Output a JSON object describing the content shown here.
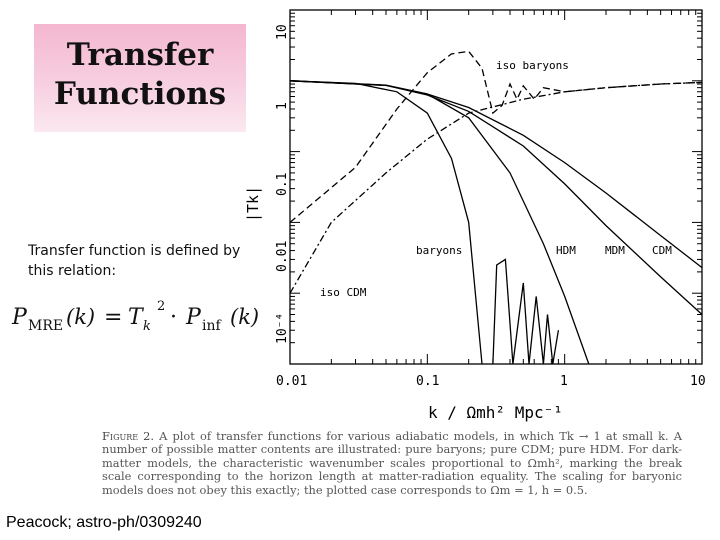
{
  "slide": {
    "title_line1": "Transfer",
    "title_line2": "Functions",
    "description": "Transfer function is defined by this relation:",
    "formula": {
      "lhs_var": "P",
      "lhs_sub": "MRE",
      "lhs_arg": "(k)",
      "equals": "=",
      "t_var": "T",
      "t_sub": "k",
      "t_sup": "2",
      "dot": "·",
      "rhs_var": "P",
      "rhs_sub": "inf",
      "rhs_arg": "(k)"
    },
    "credit": "Peacock; astro-ph/0309240"
  },
  "figure": {
    "caption_label": "Figure 2.",
    "caption_text": "A plot of transfer functions for various adiabatic models, in which Tk → 1 at small k. A number of possible matter contents are illustrated: pure baryons; pure CDM; pure HDM. For dark-matter models, the characteristic wavenumber scales proportional to Ωmh², marking the break scale corresponding to the horizon length at matter-radiation equality. The scaling for baryonic models does not obey this exactly; the plotted case corresponds to Ωm = 1, h = 0.5."
  },
  "chart_data": {
    "type": "line",
    "x_scale": "log",
    "y_scale": "log",
    "xlim": [
      0.01,
      10
    ],
    "ylim": [
      0.0001,
      10
    ],
    "xlabel": "k / Ωmh² Mpc⁻¹",
    "ylabel": "|Tk|",
    "x_ticks": [
      "0.01",
      "0.1",
      "1",
      "10"
    ],
    "y_ticks": [
      "10⁻⁴",
      "0.01",
      "0.1",
      "1",
      "10"
    ],
    "annotations": [
      "iso baryons",
      "baryons",
      "HDM",
      "MDM",
      "CDM",
      "iso CDM"
    ],
    "series": [
      {
        "style": "solid",
        "x": [
          0.01,
          0.03,
          0.06,
          0.1,
          0.15,
          0.2,
          0.25
        ],
        "y": [
          1.0,
          0.92,
          0.7,
          0.35,
          0.08,
          0.01,
          0.0001
        ]
      },
      {
        "style": "solid",
        "x": [
          0.01,
          0.05,
          0.1,
          0.2,
          0.4,
          0.7,
          1.0,
          1.5
        ],
        "y": [
          1.0,
          0.87,
          0.65,
          0.3,
          0.05,
          0.005,
          0.0009,
          0.0001
        ]
      },
      {
        "style": "solid",
        "x": [
          0.01,
          0.05,
          0.1,
          0.2,
          0.5,
          1.0,
          2.0,
          5.0,
          10
        ],
        "y": [
          1.0,
          0.86,
          0.63,
          0.37,
          0.12,
          0.035,
          0.009,
          0.0017,
          0.0005
        ]
      },
      {
        "style": "solid",
        "x": [
          0.01,
          0.05,
          0.1,
          0.2,
          0.5,
          1.0,
          2.0,
          5.0,
          10
        ],
        "y": [
          1.0,
          0.86,
          0.65,
          0.42,
          0.17,
          0.07,
          0.026,
          0.0065,
          0.0023
        ]
      },
      {
        "style": "solid",
        "x": [
          0.3,
          0.32,
          0.37,
          0.42,
          0.5,
          0.55,
          0.62,
          0.7,
          0.75,
          0.82,
          0.9
        ],
        "y": [
          0.0001,
          0.0025,
          0.003,
          0.0001,
          0.0014,
          0.0001,
          0.0009,
          0.0001,
          0.0005,
          0.0001,
          0.0003
        ]
      },
      {
        "style": "dashed",
        "x": [
          0.01,
          0.03,
          0.06,
          0.1,
          0.15,
          0.2,
          0.25,
          0.3,
          0.35,
          0.4,
          0.45,
          0.5,
          0.6,
          0.7,
          1.0,
          2.0,
          5.0,
          10
        ],
        "y": [
          0.01,
          0.06,
          0.4,
          1.3,
          2.4,
          2.6,
          1.5,
          0.35,
          0.45,
          0.9,
          0.55,
          0.85,
          0.55,
          0.8,
          0.7,
          0.8,
          0.9,
          0.95
        ]
      },
      {
        "style": "dashdot",
        "x": [
          0.01,
          0.02,
          0.05,
          0.1,
          0.2,
          0.5,
          1.0,
          2.0,
          5.0,
          10
        ],
        "y": [
          0.001,
          0.01,
          0.05,
          0.15,
          0.35,
          0.55,
          0.7,
          0.8,
          0.9,
          0.95
        ]
      }
    ]
  }
}
